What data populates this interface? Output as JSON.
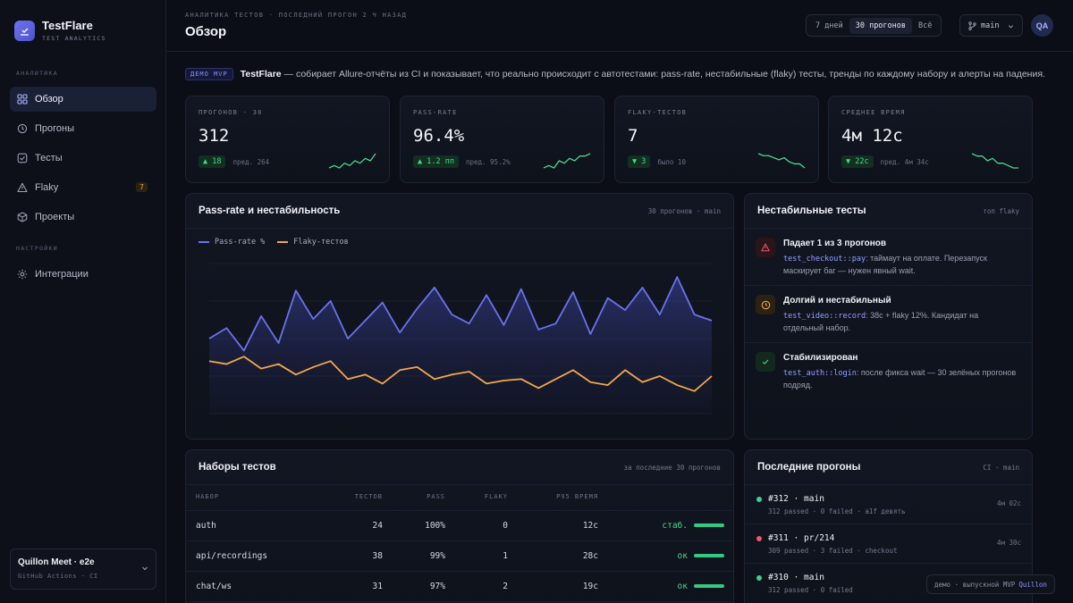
{
  "brand": {
    "name": "TestFlare",
    "subtitle": "TEST ANALYTICS"
  },
  "sidebar": {
    "section_analytics": "АНАЛИТИКА",
    "section_settings": "НАСТРОЙКИ",
    "items": [
      {
        "label": "Обзор",
        "icon": "grid-icon",
        "active": true
      },
      {
        "label": "Прогоны",
        "icon": "history-icon"
      },
      {
        "label": "Тесты",
        "icon": "checkbox-icon"
      },
      {
        "label": "Flaky",
        "icon": "warning-icon",
        "badge": "7"
      },
      {
        "label": "Проекты",
        "icon": "box-icon"
      }
    ],
    "settings_items": [
      {
        "label": "Интеграции",
        "icon": "gear-icon"
      }
    ],
    "workspace": {
      "name": "Quillon Meet · e2e",
      "sub": "GitHub Actions · CI"
    }
  },
  "header": {
    "breadcrumb": "АНАЛИТИКА ТЕСТОВ · ПОСЛЕДНИЙ ПРОГОН 2 Ч НАЗАД",
    "title": "Обзор",
    "ranges": [
      "7 дней",
      "30 прогонов",
      "Всё"
    ],
    "active_range": "30 прогонов",
    "branch": "main",
    "avatar": "QA"
  },
  "intro": {
    "tag": "ДЕМО MVP",
    "brand": "TestFlare",
    "text": " — собирает Allure-отчёты из CI и показывает, что реально происходит с автотестами: pass-rate, нестабильные (flaky) тесты, тренды по каждому набору и алерты на падения."
  },
  "kpis": [
    {
      "label": "ПРОГОНОВ · 30",
      "value": "312",
      "delta": "▲ 18",
      "prev": "пред. 264",
      "trend": [
        3,
        4,
        3,
        5,
        4,
        6,
        5,
        7,
        6,
        9
      ],
      "color": "#4ed690"
    },
    {
      "label": "PASS-RATE",
      "value": "96.4%",
      "delta": "▲ 1.2 пп",
      "prev": "пред. 95.2%",
      "trend": [
        2,
        3,
        2,
        5,
        4,
        6,
        5,
        7,
        7,
        8
      ],
      "color": "#4ed690"
    },
    {
      "label": "FLAKY-ТЕСТОВ",
      "value": "7",
      "delta": "▼ 3",
      "prev": "было 10",
      "trend": [
        9,
        8,
        8,
        7,
        6,
        7,
        5,
        4,
        4,
        2
      ],
      "color": "#4ed690"
    },
    {
      "label": "СРЕДНЕЕ ВРЕМЯ",
      "value": "4м 12с",
      "delta": "▼ 22с",
      "prev": "пред. 4м 34с",
      "trend": [
        8,
        7,
        7,
        5,
        6,
        4,
        4,
        3,
        2,
        2
      ],
      "color": "#4ed690"
    }
  ],
  "chart_panel": {
    "title": "Pass-rate и нестабильность",
    "meta": "30 прогонов · main"
  },
  "chart_data": {
    "type": "line",
    "x": [
      1,
      2,
      3,
      4,
      5,
      6,
      7,
      8,
      9,
      10,
      11,
      12,
      13,
      14,
      15,
      16,
      17,
      18,
      19,
      20,
      21,
      22,
      23,
      24,
      25,
      26,
      27,
      28,
      29,
      30
    ],
    "ylim": [
      0,
      1
    ],
    "series": [
      {
        "name": "Pass-rate %",
        "color": "#6b72ee",
        "values": [
          0.5,
          0.57,
          0.42,
          0.65,
          0.47,
          0.82,
          0.63,
          0.75,
          0.5,
          0.62,
          0.74,
          0.54,
          0.7,
          0.84,
          0.66,
          0.6,
          0.79,
          0.59,
          0.83,
          0.56,
          0.6,
          0.81,
          0.53,
          0.77,
          0.69,
          0.84,
          0.66,
          0.91,
          0.66,
          0.62
        ]
      },
      {
        "name": "Flaky-тестов",
        "color": "#f2a74b",
        "values": [
          0.35,
          0.33,
          0.38,
          0.3,
          0.33,
          0.26,
          0.31,
          0.35,
          0.23,
          0.26,
          0.2,
          0.29,
          0.31,
          0.23,
          0.26,
          0.28,
          0.2,
          0.22,
          0.23,
          0.17,
          0.23,
          0.29,
          0.21,
          0.19,
          0.29,
          0.21,
          0.25,
          0.19,
          0.15,
          0.25
        ]
      }
    ]
  },
  "flaky_panel": {
    "title": "Нестабильные тесты",
    "meta": "топ flaky",
    "items": [
      {
        "title": "Падает 1 из 3 прогонов",
        "code": "test_checkout::pay",
        "text": ": таймаут на оплате. Перезапуск маскирует баг — нужен явный wait.",
        "kind": "danger"
      },
      {
        "title": "Долгий и нестабильный",
        "code": "test_video::record",
        "text": ": 38с + flaky 12%. Кандидат на отдельный набор.",
        "kind": "warn"
      },
      {
        "title": "Стабилизирован",
        "code": "test_auth::login",
        "text": ": после фикса wait — 30 зелёных прогонов подряд.",
        "kind": "ok"
      }
    ]
  },
  "suites_panel": {
    "title": "Наборы тестов",
    "meta": "за последние 30 прогонов",
    "columns": [
      "НАБОР",
      "ТЕСТОВ",
      "PASS",
      "FLAKY",
      "P95 ВРЕМЯ",
      ""
    ],
    "rows": [
      {
        "name": "auth",
        "tests": "24",
        "pass": "100%",
        "flaky": "0",
        "p95": "12с",
        "status": "стаб.",
        "fill": 1.0
      },
      {
        "name": "api/recordings",
        "tests": "38",
        "pass": "99%",
        "flaky": "1",
        "p95": "28с",
        "status": "ок",
        "fill": 1.0
      },
      {
        "name": "chat/ws",
        "tests": "31",
        "pass": "97%",
        "flaky": "2",
        "p95": "19с",
        "status": "ок",
        "fill": 1.0
      }
    ]
  },
  "runs_panel": {
    "title": "Последние прогоны",
    "meta": "CI · main",
    "runs": [
      {
        "title": "#312 · main",
        "sub": "312 passed · 0 failed · a1f девять",
        "time": "4м 02с",
        "color": "#3fd08a"
      },
      {
        "title": "#311 · pr/214",
        "sub": "309 passed · 3 failed · checkout",
        "time": "4м 30с",
        "color": "#f0566b"
      },
      {
        "title": "#310 · main",
        "sub": "312 passed · 0 failed",
        "time": "",
        "color": "#3fd08a"
      }
    ]
  },
  "footer": {
    "text": "демо · выпускной MVP",
    "accent": "Quillon"
  }
}
